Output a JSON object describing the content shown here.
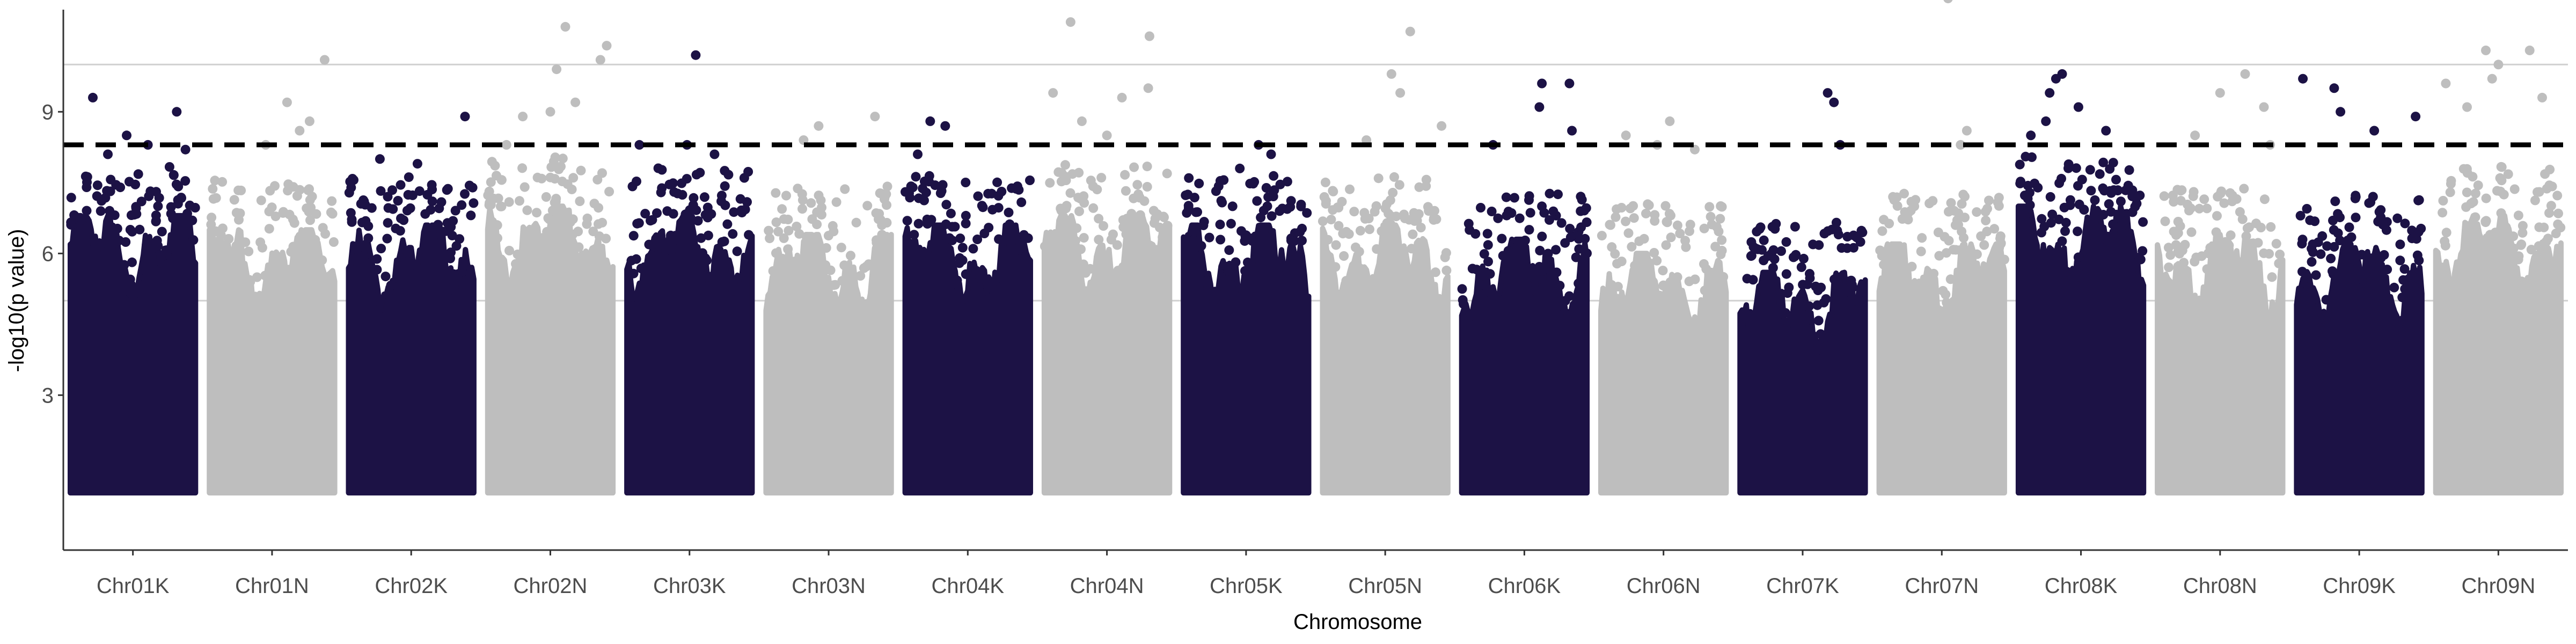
{
  "chart_data": {
    "type": "scatter",
    "subtype": "manhattan",
    "title": "",
    "xlabel": "Chromosome",
    "ylabel": "-log10(p value)",
    "ylim": [
      0,
      11.8
    ],
    "yticks": [
      3,
      6,
      9
    ],
    "grid": "horizontal reference lines at y = 5 and y = 10",
    "reference_lines": [
      {
        "y": 5,
        "style": "solid",
        "color": "#d0d0d0"
      },
      {
        "y": 10,
        "style": "solid",
        "color": "#d0d0d0"
      },
      {
        "y": 8.3,
        "style": "dashed",
        "color": "#000000",
        "meaning": "significance threshold"
      }
    ],
    "point_min_y": 1.0,
    "alternating_colors": [
      "#1c1245",
      "#bebebe"
    ],
    "categories": [
      "Chr01K",
      "Chr01N",
      "Chr02K",
      "Chr02N",
      "Chr03K",
      "Chr03N",
      "Chr04K",
      "Chr04N",
      "Chr05K",
      "Chr05N",
      "Chr06K",
      "Chr06N",
      "Chr07K",
      "Chr07N",
      "Chr08K",
      "Chr08N",
      "Chr09K",
      "Chr09N"
    ],
    "series": [
      {
        "category": "Chr01K",
        "color": "#1c1245",
        "dense_top": 6.8,
        "top_points": [
          [
            0.18,
            9.3
          ],
          [
            0.85,
            9.0
          ],
          [
            0.45,
            8.5
          ],
          [
            0.62,
            8.3
          ],
          [
            0.3,
            8.1
          ],
          [
            0.92,
            8.2
          ]
        ]
      },
      {
        "category": "Chr01N",
        "color": "#bebebe",
        "dense_top": 6.5,
        "top_points": [
          [
            0.62,
            9.2
          ],
          [
            0.92,
            10.1
          ],
          [
            0.8,
            8.8
          ],
          [
            0.45,
            8.3
          ],
          [
            0.72,
            8.6
          ]
        ]
      },
      {
        "category": "Chr02K",
        "color": "#1c1245",
        "dense_top": 6.6,
        "top_points": [
          [
            0.93,
            8.9
          ],
          [
            0.25,
            8.0
          ],
          [
            0.55,
            7.9
          ]
        ]
      },
      {
        "category": "Chr02N",
        "color": "#bebebe",
        "dense_top": 7.0,
        "top_points": [
          [
            0.62,
            10.8
          ],
          [
            0.95,
            10.4
          ],
          [
            0.9,
            10.1
          ],
          [
            0.55,
            9.9
          ],
          [
            0.7,
            9.2
          ],
          [
            0.5,
            9.0
          ],
          [
            0.28,
            8.9
          ],
          [
            0.15,
            8.3
          ]
        ]
      },
      {
        "category": "Chr03K",
        "color": "#1c1245",
        "dense_top": 6.8,
        "top_points": [
          [
            0.55,
            10.2
          ],
          [
            0.1,
            8.3
          ],
          [
            0.48,
            8.3
          ],
          [
            0.7,
            8.1
          ]
        ]
      },
      {
        "category": "Chr03N",
        "color": "#bebebe",
        "dense_top": 6.4,
        "top_points": [
          [
            0.87,
            8.9
          ],
          [
            0.42,
            8.7
          ],
          [
            0.3,
            8.4
          ]
        ]
      },
      {
        "category": "Chr04K",
        "color": "#1c1245",
        "dense_top": 6.6,
        "top_points": [
          [
            0.2,
            8.8
          ],
          [
            0.32,
            8.7
          ],
          [
            0.1,
            8.1
          ]
        ]
      },
      {
        "category": "Chr04N",
        "color": "#bebebe",
        "dense_top": 6.8,
        "top_points": [
          [
            0.21,
            10.9
          ],
          [
            0.84,
            10.6
          ],
          [
            0.07,
            9.4
          ],
          [
            0.83,
            9.5
          ],
          [
            0.62,
            9.3
          ],
          [
            0.3,
            8.8
          ],
          [
            0.5,
            8.5
          ]
        ]
      },
      {
        "category": "Chr05K",
        "color": "#1c1245",
        "dense_top": 6.6,
        "top_points": [
          [
            0.6,
            8.3
          ],
          [
            0.7,
            8.1
          ],
          [
            0.45,
            7.8
          ]
        ]
      },
      {
        "category": "Chr05N",
        "color": "#bebebe",
        "dense_top": 6.6,
        "top_points": [
          [
            0.7,
            10.7
          ],
          [
            0.55,
            9.8
          ],
          [
            0.62,
            9.4
          ],
          [
            0.95,
            8.7
          ],
          [
            0.35,
            8.4
          ]
        ]
      },
      {
        "category": "Chr06K",
        "color": "#1c1245",
        "dense_top": 6.3,
        "top_points": [
          [
            0.64,
            9.6
          ],
          [
            0.86,
            9.6
          ],
          [
            0.62,
            9.1
          ],
          [
            0.88,
            8.6
          ],
          [
            0.25,
            8.3
          ]
        ]
      },
      {
        "category": "Chr06N",
        "color": "#bebebe",
        "dense_top": 6.0,
        "top_points": [
          [
            0.55,
            8.8
          ],
          [
            0.2,
            8.5
          ],
          [
            0.45,
            8.3
          ],
          [
            0.75,
            8.2
          ]
        ]
      },
      {
        "category": "Chr07K",
        "color": "#1c1245",
        "dense_top": 5.6,
        "top_points": [
          [
            0.7,
            9.4
          ],
          [
            0.75,
            9.2
          ],
          [
            0.8,
            8.3
          ]
        ]
      },
      {
        "category": "Chr07N",
        "color": "#bebebe",
        "dense_top": 6.2,
        "top_points": [
          [
            0.55,
            11.4
          ],
          [
            0.7,
            8.6
          ],
          [
            0.65,
            8.3
          ]
        ]
      },
      {
        "category": "Chr08K",
        "color": "#1c1245",
        "dense_top": 7.0,
        "top_points": [
          [
            0.35,
            9.8
          ],
          [
            0.3,
            9.7
          ],
          [
            0.25,
            9.4
          ],
          [
            0.48,
            9.1
          ],
          [
            0.22,
            8.8
          ],
          [
            0.1,
            8.5
          ],
          [
            0.7,
            8.6
          ]
        ]
      },
      {
        "category": "Chr08N",
        "color": "#bebebe",
        "dense_top": 6.4,
        "top_points": [
          [
            0.7,
            9.8
          ],
          [
            0.5,
            9.4
          ],
          [
            0.85,
            9.1
          ],
          [
            0.3,
            8.5
          ],
          [
            0.9,
            8.3
          ]
        ]
      },
      {
        "category": "Chr09K",
        "color": "#1c1245",
        "dense_top": 6.2,
        "top_points": [
          [
            0.05,
            9.7
          ],
          [
            0.3,
            9.5
          ],
          [
            0.35,
            9.0
          ],
          [
            0.95,
            8.9
          ],
          [
            0.62,
            8.6
          ]
        ]
      },
      {
        "category": "Chr09N",
        "color": "#bebebe",
        "dense_top": 6.8,
        "top_points": [
          [
            0.4,
            10.3
          ],
          [
            0.75,
            10.3
          ],
          [
            0.5,
            10.0
          ],
          [
            0.45,
            9.7
          ],
          [
            0.08,
            9.6
          ],
          [
            0.25,
            9.1
          ],
          [
            0.85,
            9.3
          ]
        ]
      }
    ]
  }
}
